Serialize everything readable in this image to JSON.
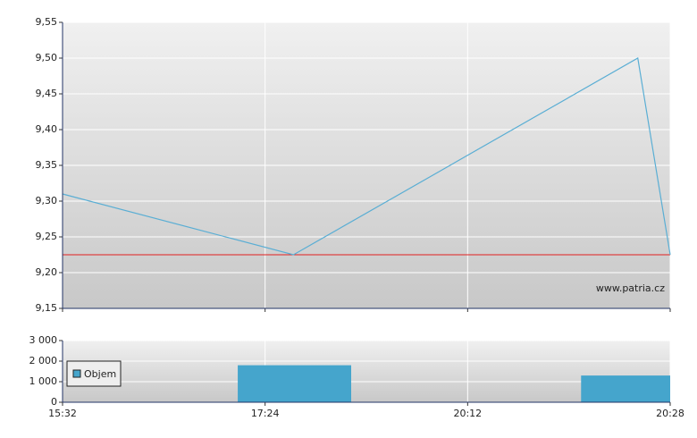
{
  "chart_data": [
    {
      "type": "line",
      "x": [
        0,
        1.14,
        2.84,
        3
      ],
      "series": [
        {
          "color": "#5aaed4",
          "values": [
            9.31,
            9.225,
            9.5,
            9.225
          ]
        }
      ],
      "reference_line": {
        "value": 9.225,
        "color": "#e02020"
      },
      "ylim": [
        9.15,
        9.55
      ],
      "yticks": [
        {
          "value": 9.15,
          "label": "9,15"
        },
        {
          "value": 9.2,
          "label": "9,20"
        },
        {
          "value": 9.25,
          "label": "9,25"
        },
        {
          "value": 9.3,
          "label": "9,30"
        },
        {
          "value": 9.35,
          "label": "9,35"
        },
        {
          "value": 9.4,
          "label": "9,40"
        },
        {
          "value": 9.45,
          "label": "9,45"
        },
        {
          "value": 9.5,
          "label": "9,50"
        },
        {
          "value": 9.55,
          "label": "9,55"
        }
      ],
      "grid": true,
      "annotation": "www.patria.cz"
    },
    {
      "type": "bar",
      "x_start": [
        0.865,
        2.56
      ],
      "x_end": [
        1.425,
        3
      ],
      "series": [
        {
          "name": "Objem",
          "color": "#45a5cc",
          "values": [
            1800,
            1300
          ]
        }
      ],
      "xlim": [
        0,
        3
      ],
      "xticks": [
        {
          "value": 0,
          "label": "15:32"
        },
        {
          "value": 1,
          "label": "17:24"
        },
        {
          "value": 2,
          "label": "20:12"
        },
        {
          "value": 3,
          "label": "20:28"
        }
      ],
      "ylim": [
        0,
        3000
      ],
      "yticks": [
        0,
        {
          "value": 1000,
          "label": "1 000"
        },
        {
          "value": 2000,
          "label": "2 000"
        },
        {
          "value": 3000,
          "label": "3 000"
        }
      ],
      "grid": true,
      "legend": "top-left"
    }
  ]
}
